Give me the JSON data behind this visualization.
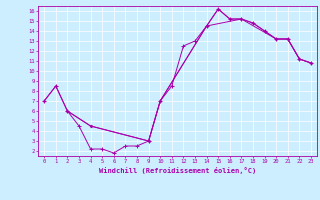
{
  "background_color": "#cceeff",
  "line_color": "#aa00aa",
  "grid_color": "#ffffff",
  "xlabel": "Windchill (Refroidissement éolien,°C)",
  "xlabel_color": "#aa00aa",
  "tick_color": "#aa00aa",
  "xlim": [
    -0.5,
    23.5
  ],
  "ylim": [
    1.5,
    16.5
  ],
  "xticks": [
    0,
    1,
    2,
    3,
    4,
    5,
    6,
    7,
    8,
    9,
    10,
    11,
    12,
    13,
    14,
    15,
    16,
    17,
    18,
    19,
    20,
    21,
    22,
    23
  ],
  "yticks": [
    2,
    3,
    4,
    5,
    6,
    7,
    8,
    9,
    10,
    11,
    12,
    13,
    14,
    15,
    16
  ],
  "line1_x": [
    0,
    1,
    2,
    3,
    4,
    5,
    6,
    7,
    8,
    9,
    10,
    11,
    12,
    13,
    14,
    15,
    16,
    17,
    18,
    19,
    20,
    21,
    22,
    23
  ],
  "line1_y": [
    7,
    8.5,
    6,
    4.5,
    2.2,
    2.2,
    1.8,
    2.5,
    2.5,
    3.0,
    7.0,
    8.5,
    12.5,
    13.0,
    14.5,
    16.2,
    15.2,
    15.2,
    14.8,
    14.0,
    13.2,
    13.2,
    11.2,
    10.8
  ],
  "line2_x": [
    0,
    1,
    2,
    4,
    9,
    10,
    14,
    15,
    16,
    17,
    18,
    19,
    20,
    21,
    22,
    23
  ],
  "line2_y": [
    7,
    8.5,
    6,
    4.5,
    3.0,
    7.0,
    14.5,
    16.2,
    15.2,
    15.2,
    14.8,
    14.0,
    13.2,
    13.2,
    11.2,
    10.8
  ],
  "line3_x": [
    2,
    4,
    9,
    10,
    14,
    17,
    20,
    21,
    22,
    23
  ],
  "line3_y": [
    6,
    4.5,
    3.0,
    7.0,
    14.5,
    15.2,
    13.2,
    13.2,
    11.2,
    10.8
  ]
}
